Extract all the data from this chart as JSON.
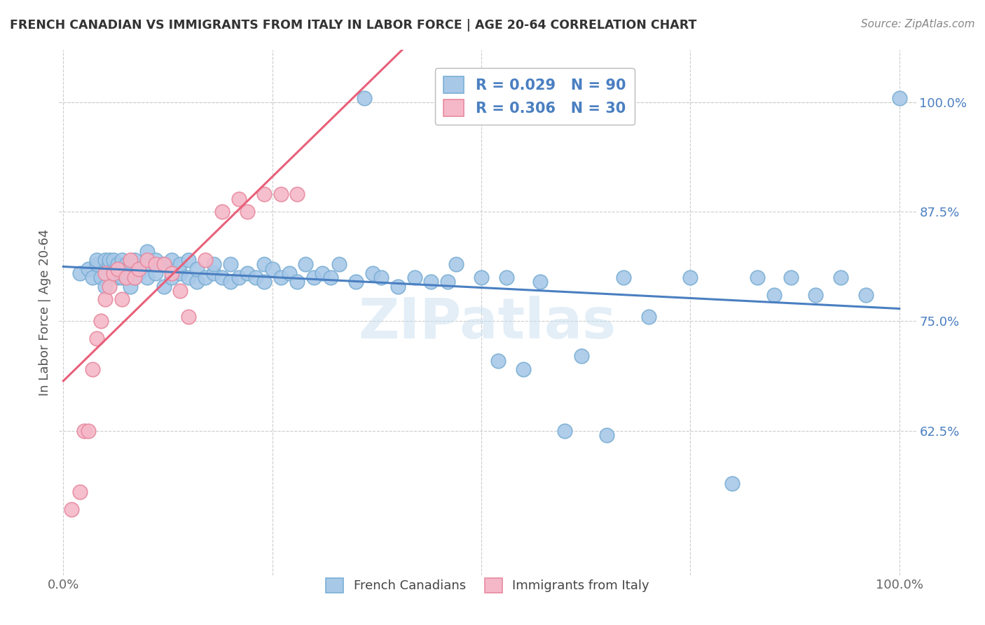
{
  "title": "FRENCH CANADIAN VS IMMIGRANTS FROM ITALY IN LABOR FORCE | AGE 20-64 CORRELATION CHART",
  "source": "Source: ZipAtlas.com",
  "ylabel": "In Labor Force | Age 20-64",
  "y_ticks_right": [
    1.0,
    0.875,
    0.75,
    0.625
  ],
  "y_tick_labels_right": [
    "100.0%",
    "87.5%",
    "75.0%",
    "62.5%"
  ],
  "blue_scatter_color": "#a8c8e8",
  "blue_edge_color": "#7bafd4",
  "pink_scatter_color": "#f4b8c8",
  "pink_edge_color": "#e88aa0",
  "line_blue": "#4a7fc1",
  "line_pink": "#e8607a",
  "watermark": "ZIPatlas",
  "watermark_color": "#c8dff0",
  "french_canadians_x": [
    0.02,
    0.03,
    0.035,
    0.04,
    0.04,
    0.045,
    0.05,
    0.05,
    0.055,
    0.055,
    0.06,
    0.06,
    0.06,
    0.065,
    0.065,
    0.07,
    0.07,
    0.07,
    0.075,
    0.075,
    0.08,
    0.08,
    0.08,
    0.085,
    0.085,
    0.09,
    0.09,
    0.1,
    0.1,
    0.1,
    0.11,
    0.11,
    0.12,
    0.12,
    0.13,
    0.13,
    0.14,
    0.14,
    0.15,
    0.15,
    0.16,
    0.16,
    0.17,
    0.18,
    0.18,
    0.19,
    0.2,
    0.2,
    0.21,
    0.22,
    0.23,
    0.24,
    0.24,
    0.25,
    0.26,
    0.27,
    0.28,
    0.29,
    0.3,
    0.31,
    0.32,
    0.33,
    0.35,
    0.36,
    0.37,
    0.38,
    0.4,
    0.42,
    0.44,
    0.46,
    0.47,
    0.5,
    0.52,
    0.53,
    0.55,
    0.57,
    0.6,
    0.62,
    0.65,
    0.67,
    0.7,
    0.75,
    0.8,
    0.83,
    0.85,
    0.87,
    0.9,
    0.93,
    0.96,
    1.0
  ],
  "french_canadians_y": [
    0.805,
    0.81,
    0.8,
    0.815,
    0.82,
    0.8,
    0.79,
    0.82,
    0.815,
    0.82,
    0.805,
    0.81,
    0.82,
    0.8,
    0.815,
    0.8,
    0.805,
    0.82,
    0.8,
    0.815,
    0.79,
    0.805,
    0.815,
    0.8,
    0.82,
    0.805,
    0.81,
    0.8,
    0.815,
    0.83,
    0.805,
    0.82,
    0.79,
    0.815,
    0.8,
    0.82,
    0.805,
    0.815,
    0.8,
    0.82,
    0.795,
    0.81,
    0.8,
    0.805,
    0.815,
    0.8,
    0.795,
    0.815,
    0.8,
    0.805,
    0.8,
    0.795,
    0.815,
    0.81,
    0.8,
    0.805,
    0.795,
    0.815,
    0.8,
    0.805,
    0.8,
    0.815,
    0.795,
    1.005,
    0.805,
    0.8,
    0.79,
    0.8,
    0.795,
    0.795,
    0.815,
    0.8,
    0.705,
    0.8,
    0.695,
    0.795,
    0.625,
    0.71,
    0.62,
    0.8,
    0.755,
    0.8,
    0.565,
    0.8,
    0.78,
    0.8,
    0.78,
    0.8,
    0.78,
    1.005
  ],
  "immigrants_x": [
    0.01,
    0.02,
    0.025,
    0.03,
    0.035,
    0.04,
    0.045,
    0.05,
    0.05,
    0.055,
    0.06,
    0.065,
    0.07,
    0.075,
    0.08,
    0.085,
    0.09,
    0.1,
    0.11,
    0.12,
    0.13,
    0.14,
    0.15,
    0.17,
    0.19,
    0.21,
    0.22,
    0.24,
    0.26,
    0.28
  ],
  "immigrants_y": [
    0.535,
    0.555,
    0.625,
    0.625,
    0.695,
    0.73,
    0.75,
    0.775,
    0.805,
    0.79,
    0.805,
    0.81,
    0.775,
    0.8,
    0.82,
    0.8,
    0.81,
    0.82,
    0.815,
    0.815,
    0.805,
    0.785,
    0.755,
    0.82,
    0.875,
    0.89,
    0.875,
    0.895,
    0.895,
    0.895
  ]
}
